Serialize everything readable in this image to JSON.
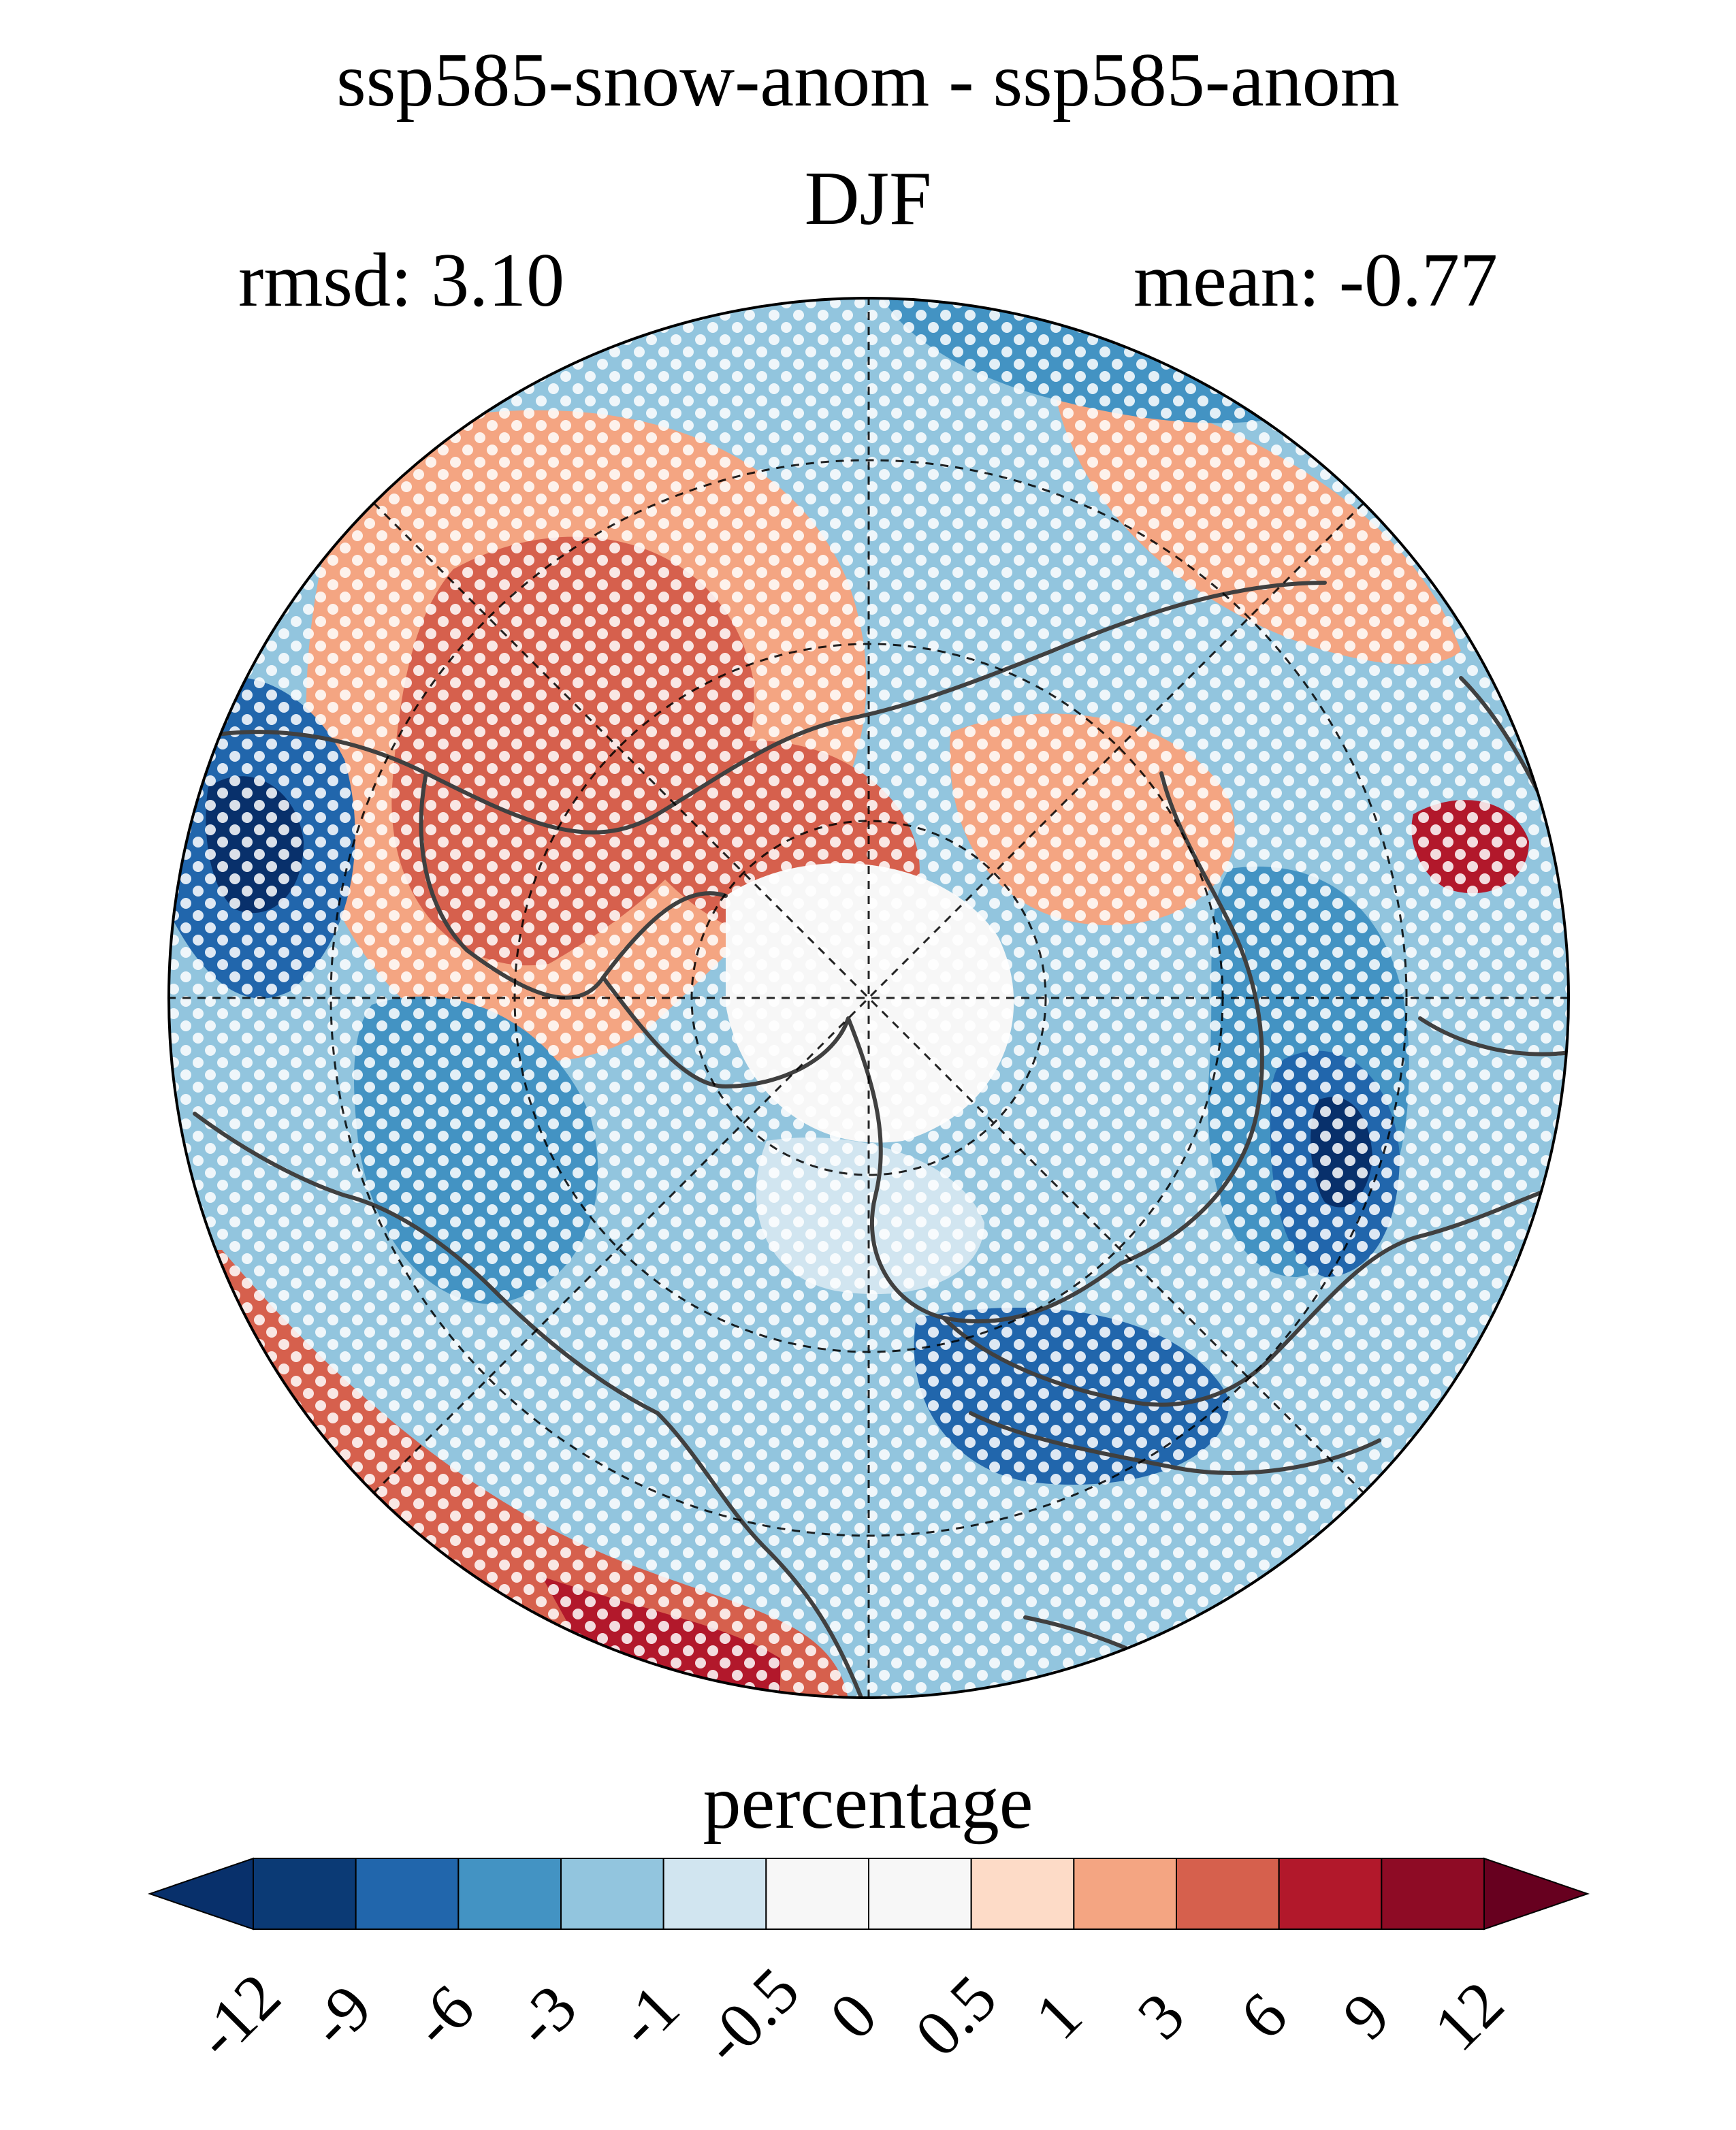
{
  "figure": {
    "title": "ssp585-snow-anom - ssp585-anom",
    "season": "DJF",
    "rmsd_text": "rmsd: 3.10",
    "mean_text": "mean: -0.77"
  },
  "colorbar": {
    "label": "percentage",
    "ticks": [
      "-12",
      "-9",
      "-6",
      "-3",
      "-1",
      "-0.5",
      "0",
      "0.5",
      "1",
      "3",
      "6",
      "9",
      "12"
    ],
    "colors": [
      "#08306b",
      "#0b3a75",
      "#2166ac",
      "#4393c3",
      "#92c5de",
      "#d1e5f0",
      "#f7f7f7",
      "#f7f7f7",
      "#fddbc7",
      "#f4a582",
      "#d6604d",
      "#b2182b",
      "#8e0b25",
      "#67001f"
    ],
    "extend": "both"
  },
  "map": {
    "projection": "north-polar-stereographic",
    "stippling_color": "#ffffff",
    "coastline_color": "#404040"
  }
}
